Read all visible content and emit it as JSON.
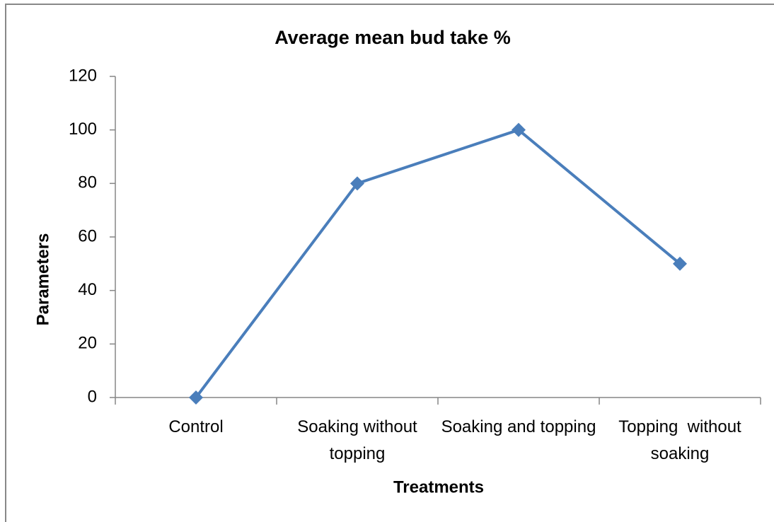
{
  "chart_data": {
    "type": "line",
    "title": "Average mean bud take %",
    "x_label": "Treatments",
    "y_label": "Parameters",
    "categories": [
      "Control",
      "Soaking without topping",
      "Soaking and topping",
      "Topping  without soaking"
    ],
    "series": [
      {
        "name": "Average mean bud take %",
        "color": "#4a7ebb",
        "values": [
          0,
          80,
          100,
          50
        ]
      }
    ],
    "ylim": [
      0,
      120
    ],
    "yticks": [
      0,
      20,
      40,
      60,
      80,
      100,
      120
    ],
    "grid": false,
    "legend": false
  }
}
